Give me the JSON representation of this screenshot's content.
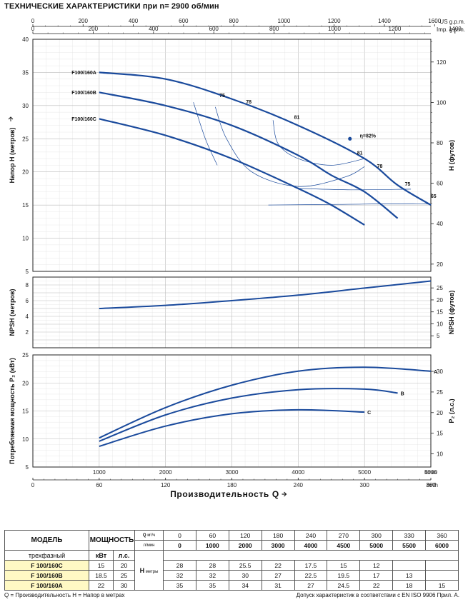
{
  "title": "ТЕХНИЧЕСКИЕ ХАРАКТЕРИСТИКИ при n= 2900 об/мин",
  "chart_data": [
    {
      "type": "line",
      "name_ru": "head",
      "top_axes": {
        "us_gpm": {
          "label": "US g.p.m.",
          "ticks": [
            0,
            200,
            400,
            600,
            800,
            1000,
            1200,
            1400,
            1600
          ]
        },
        "imp_gpm": {
          "label": "Imp. g.p.m.",
          "ticks": [
            0,
            200,
            400,
            600,
            800,
            1000,
            1200,
            1400
          ]
        }
      },
      "ylabel": "Напор  H   (метров)",
      "ylim": [
        5,
        40
      ],
      "yticks": [
        5,
        10,
        15,
        20,
        25,
        30,
        35,
        40
      ],
      "y2label": "H   (футов)",
      "y2ticks": [
        20,
        40,
        60,
        80,
        100,
        120
      ],
      "xlim": [
        0,
        6000
      ],
      "series": [
        {
          "name": "F100/160A",
          "x": [
            1000,
            2000,
            3000,
            4000,
            5000,
            5500,
            6000
          ],
          "y": [
            35,
            34,
            31,
            27,
            22,
            18,
            15
          ]
        },
        {
          "name": "F100/160B",
          "x": [
            1000,
            2000,
            3000,
            4000,
            4500,
            5000,
            5500
          ],
          "y": [
            32,
            30,
            27,
            22.5,
            19.5,
            17,
            13
          ]
        },
        {
          "name": "F100/160C",
          "x": [
            1000,
            2000,
            3000,
            4000,
            4500,
            5000
          ],
          "y": [
            28,
            25.5,
            22,
            17.5,
            15,
            12
          ]
        }
      ],
      "efficiency_labels": [
        "75",
        "78",
        "81",
        "η=82%",
        "81",
        "78",
        "75",
        "65"
      ]
    },
    {
      "type": "line",
      "name_ru": "npsh",
      "ylabel": "NPSH   (метров)",
      "y2label": "NPSH   (футов)",
      "ylim": [
        0,
        9
      ],
      "yticks": [
        2,
        4,
        6,
        8
      ],
      "y2ticks": [
        5,
        10,
        15,
        20,
        25
      ],
      "xlim": [
        0,
        6000
      ],
      "series": [
        {
          "x": [
            1000,
            2000,
            3000,
            4000,
            5000,
            6000
          ],
          "y": [
            5,
            5.4,
            6.0,
            6.7,
            7.6,
            8.5
          ]
        }
      ]
    },
    {
      "type": "line",
      "name_ru": "power",
      "ylabel": "Потребляемая мощность  P₂  (кВт)",
      "y2label": "P₂  (л.с.)",
      "ylim": [
        5,
        25
      ],
      "yticks": [
        5,
        10,
        15,
        20,
        25
      ],
      "y2ticks": [
        10,
        15,
        20,
        25,
        30
      ],
      "xlabel": "Производительность  Q",
      "xlim": [
        0,
        6000
      ],
      "xticks_lmin": [
        1000,
        2000,
        3000,
        4000,
        5000,
        6000
      ],
      "xunit_lmin": "l/min",
      "xticks_m3h": [
        0,
        60,
        120,
        180,
        240,
        300,
        360
      ],
      "xunit_m3h": "m³/h",
      "series": [
        {
          "name": "A",
          "x": [
            1000,
            2000,
            3000,
            4000,
            5000,
            6000
          ],
          "y": [
            10.2,
            15.6,
            19.6,
            22.1,
            22.8,
            22.1
          ]
        },
        {
          "name": "B",
          "x": [
            1000,
            2000,
            3000,
            4000,
            5000,
            5500
          ],
          "y": [
            9.6,
            14.3,
            17.3,
            18.8,
            18.9,
            18.2
          ]
        },
        {
          "name": "C",
          "x": [
            1000,
            2000,
            3000,
            4000,
            5000
          ],
          "y": [
            8.7,
            12.3,
            14.5,
            15.2,
            14.8
          ]
        }
      ]
    }
  ],
  "table": {
    "h_model": "МОДЕЛЬ",
    "h_power": "МОЩНОСТЬ",
    "h_q": "Q",
    "h_m3h": "м³/ч",
    "h_lmin": "л/мин",
    "h_phase": "трехфазный",
    "h_kw": "кВт",
    "h_hp": "л.с.",
    "h_h": "H",
    "h_metres": "метры",
    "q_m3h": [
      "0",
      "60",
      "120",
      "180",
      "240",
      "270",
      "300",
      "330",
      "360"
    ],
    "q_lmin": [
      "0",
      "1000",
      "2000",
      "3000",
      "4000",
      "4500",
      "5000",
      "5500",
      "6000"
    ],
    "rows": [
      {
        "model": "F 100/160C",
        "kw": "15",
        "hp": "20",
        "h": [
          "28",
          "28",
          "25.5",
          "22",
          "17.5",
          "15",
          "12",
          "",
          ""
        ]
      },
      {
        "model": "F 100/160B",
        "kw": "18.5",
        "hp": "25",
        "h": [
          "32",
          "32",
          "30",
          "27",
          "22.5",
          "19.5",
          "17",
          "13",
          ""
        ]
      },
      {
        "model": "F 100/160A",
        "kw": "22",
        "hp": "30",
        "h": [
          "35",
          "35",
          "34",
          "31",
          "27",
          "24.5",
          "22",
          "18",
          "15"
        ]
      }
    ]
  },
  "footer": {
    "left": "Q = Производительность   H = Напор в метрах",
    "right": "Допуск характеристик в соответствии с EN ISO 9906 Прил.  A."
  },
  "colors": {
    "curve": "#1a4a9c",
    "grid": "#bbbbbb",
    "minor_grid": "#e2e2e2",
    "axis": "#222222",
    "highlight": "#fff9c4"
  }
}
